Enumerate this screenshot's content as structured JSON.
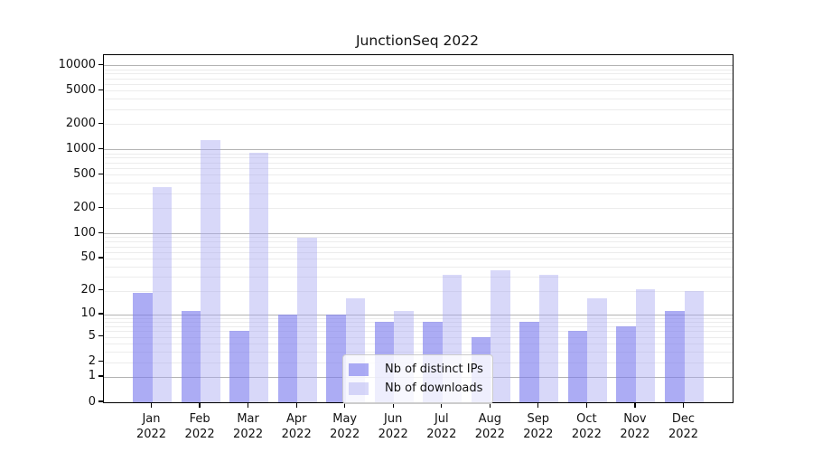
{
  "chart_data": {
    "type": "bar",
    "title": "JunctionSeq 2022",
    "categories": [
      "Jan",
      "Feb",
      "Mar",
      "Apr",
      "May",
      "Jun",
      "Jul",
      "Aug",
      "Sep",
      "Oct",
      "Nov",
      "Dec"
    ],
    "category_year": "2022",
    "series": [
      {
        "name": "Nb of distinct IPs",
        "color": "rgba(121,121,237,0.62)",
        "values": [
          19,
          11,
          6,
          10,
          10,
          8,
          8,
          5,
          8,
          6,
          7,
          11
        ]
      },
      {
        "name": "Nb of downloads",
        "color": "rgba(168,168,241,0.45)",
        "values": [
          360,
          1290,
          910,
          88,
          16,
          11,
          32,
          36,
          32,
          16,
          21,
          20
        ]
      }
    ],
    "y_ticks": [
      0,
      1,
      2,
      5,
      10,
      20,
      50,
      100,
      200,
      500,
      1000,
      2000,
      5000,
      10000
    ],
    "y_scale": "log10(1+v)",
    "ylim": [
      0,
      13500
    ],
    "xlabel": "",
    "ylabel": "",
    "grid": "on",
    "legend_position": "lower-center",
    "colors": {
      "major_grid": "#b3b3b3",
      "minor_grid": "#ececec",
      "axis": "#000000",
      "text": "#111111",
      "background": "#ffffff"
    }
  }
}
